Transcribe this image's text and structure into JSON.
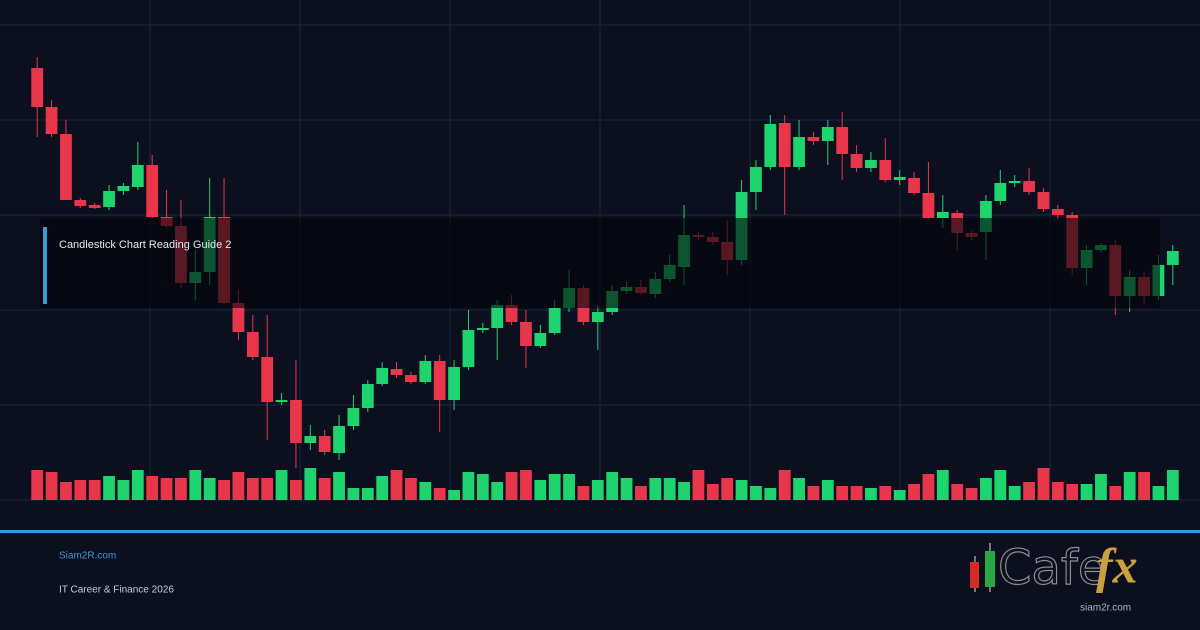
{
  "chart_data": {
    "type": "candlestick",
    "open": [
      432,
      393,
      366,
      300,
      295,
      293,
      309,
      313,
      335,
      283,
      274,
      217,
      228,
      283,
      197,
      168,
      143,
      98,
      100,
      57,
      64,
      47,
      74,
      92,
      116,
      131,
      125,
      118,
      139,
      100,
      133,
      170,
      172,
      195,
      178,
      154,
      167,
      192,
      212,
      178,
      188,
      209,
      213,
      206,
      221,
      233,
      265,
      263,
      258,
      240,
      308,
      333,
      377,
      333,
      363,
      359,
      373,
      346,
      332,
      340,
      320,
      322,
      307,
      282,
      287,
      267,
      268,
      299,
      317,
      319,
      308,
      291,
      285,
      232,
      250,
      255,
      204,
      223,
      204,
      235
    ],
    "high": [
      443,
      400,
      380,
      302,
      297,
      315,
      317,
      358,
      345,
      310,
      300,
      250,
      322,
      322,
      210,
      185,
      185,
      107,
      140,
      75,
      70,
      85,
      105,
      120,
      138,
      138,
      128,
      145,
      145,
      140,
      190,
      177,
      200,
      205,
      190,
      175,
      200,
      230,
      215,
      195,
      215,
      218,
      220,
      228,
      245,
      295,
      268,
      268,
      280,
      320,
      340,
      385,
      385,
      380,
      368,
      380,
      388,
      355,
      348,
      362,
      330,
      328,
      338,
      305,
      290,
      270,
      305,
      330,
      325,
      332,
      312,
      295,
      288,
      255,
      257,
      260,
      230,
      228,
      245,
      255
    ],
    "low": [
      363,
      363,
      300,
      292,
      291,
      290,
      305,
      310,
      282,
      272,
      212,
      200,
      215,
      195,
      160,
      140,
      60,
      95,
      32,
      50,
      45,
      40,
      70,
      88,
      114,
      122,
      116,
      116,
      68,
      90,
      130,
      167,
      140,
      175,
      132,
      152,
      165,
      188,
      175,
      150,
      185,
      206,
      205,
      202,
      218,
      215,
      260,
      255,
      225,
      235,
      290,
      330,
      285,
      330,
      355,
      335,
      320,
      328,
      328,
      318,
      315,
      305,
      280,
      272,
      250,
      260,
      240,
      295,
      313,
      305,
      288,
      280,
      225,
      215,
      248,
      185,
      188,
      195,
      200,
      215
    ],
    "close": [
      393,
      366,
      300,
      294,
      292,
      309,
      314,
      335,
      283,
      274,
      217,
      228,
      283,
      197,
      168,
      143,
      98,
      100,
      57,
      64,
      48,
      74,
      92,
      116,
      132,
      125,
      118,
      139,
      100,
      133,
      170,
      172,
      195,
      178,
      154,
      167,
      192,
      212,
      178,
      188,
      209,
      213,
      207,
      221,
      235,
      265,
      263,
      258,
      240,
      308,
      333,
      376,
      333,
      363,
      359,
      373,
      346,
      332,
      340,
      320,
      323,
      307,
      282,
      288,
      267,
      263,
      299,
      317,
      319,
      308,
      291,
      285,
      232,
      250,
      255,
      204,
      223,
      204,
      235,
      249
    ],
    "volume": [
      30,
      28,
      18,
      20,
      20,
      24,
      20,
      30,
      24,
      22,
      22,
      30,
      22,
      20,
      28,
      22,
      22,
      30,
      20,
      32,
      22,
      28,
      12,
      12,
      24,
      30,
      22,
      18,
      12,
      10,
      28,
      26,
      18,
      28,
      30,
      20,
      26,
      26,
      14,
      20,
      28,
      22,
      14,
      22,
      22,
      18,
      30,
      16,
      22,
      20,
      14,
      12,
      30,
      22,
      14,
      20,
      14,
      14,
      12,
      14,
      10,
      16,
      26,
      30,
      16,
      12,
      22,
      30,
      14,
      18,
      32,
      18,
      16,
      16,
      26,
      14,
      28,
      28,
      14,
      30
    ],
    "ylim": [
      0,
      475
    ],
    "volume_ylim": [
      0,
      150
    ],
    "up_color": "#1ed46f",
    "down_color": "#e8374b",
    "grid": true
  },
  "overlay": {
    "title": "Candlestick Chart Reading Guide 2"
  },
  "footer": {
    "site": "Siam2R.com",
    "tagline": "IT Career & Finance 2026",
    "logo_word": "Cafe",
    "logo_accent": "fx",
    "logo_url": "siam2r.com"
  }
}
